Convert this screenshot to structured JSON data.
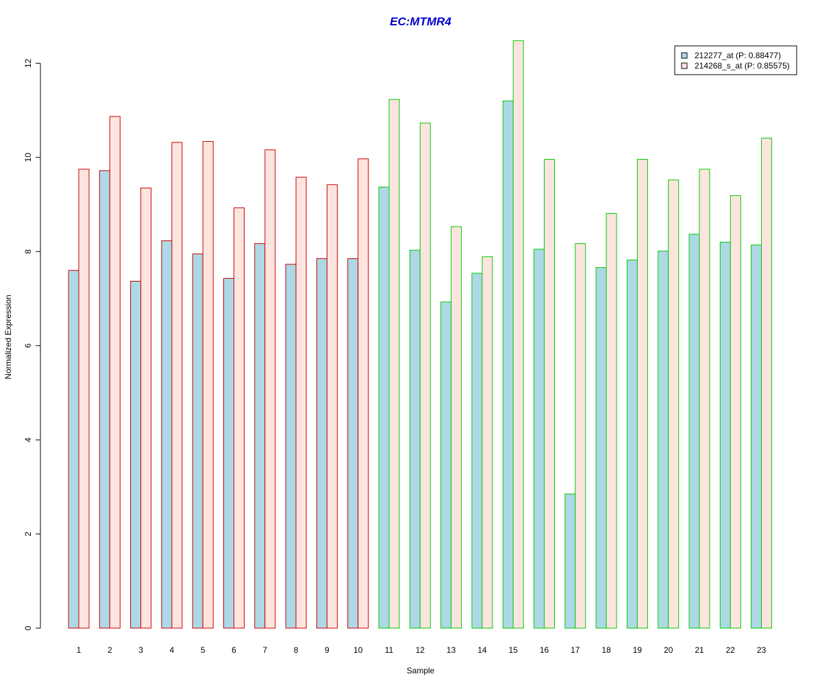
{
  "chart_data": {
    "type": "bar",
    "title": "EC:MTMR4",
    "title_color": "#0000CC",
    "xlabel": "Sample",
    "ylabel": "Normalized Expression",
    "ylim": [
      0,
      12.5
    ],
    "yticks": [
      0,
      2,
      4,
      6,
      8,
      10,
      12
    ],
    "grid": false,
    "legend_position": "top-right",
    "categories": [
      "1",
      "2",
      "3",
      "4",
      "5",
      "6",
      "7",
      "8",
      "9",
      "10",
      "11",
      "12",
      "13",
      "14",
      "15",
      "16",
      "17",
      "18",
      "19",
      "20",
      "21",
      "22",
      "23"
    ],
    "group_border_colors": [
      "#CC0000",
      "#CC0000",
      "#CC0000",
      "#CC0000",
      "#CC0000",
      "#CC0000",
      "#CC0000",
      "#CC0000",
      "#CC0000",
      "#CC0000",
      "#00CC00",
      "#00CC00",
      "#00CC00",
      "#00CC00",
      "#00CC00",
      "#00CC00",
      "#00CC00",
      "#00CC00",
      "#00CC00",
      "#00CC00",
      "#00CC00",
      "#00CC00",
      "#00CC00"
    ],
    "series": [
      {
        "name": "212277_at (P: 0.88477)",
        "color": "#ADD8E6",
        "values": [
          7.6,
          9.72,
          7.37,
          8.23,
          7.95,
          7.43,
          8.17,
          7.73,
          7.85,
          7.85,
          9.37,
          8.03,
          6.93,
          7.54,
          11.2,
          8.05,
          2.85,
          7.66,
          7.82,
          8.01,
          8.37,
          8.2,
          8.14
        ]
      },
      {
        "name": "214268_s_at (P: 0.85575)",
        "color": "#FCE4DF",
        "values": [
          9.75,
          10.87,
          9.35,
          10.32,
          10.34,
          8.93,
          10.16,
          9.58,
          9.42,
          9.97,
          11.23,
          10.73,
          8.53,
          7.89,
          12.48,
          9.96,
          8.17,
          8.81,
          9.96,
          9.52,
          9.75,
          9.19,
          10.41
        ]
      }
    ]
  }
}
